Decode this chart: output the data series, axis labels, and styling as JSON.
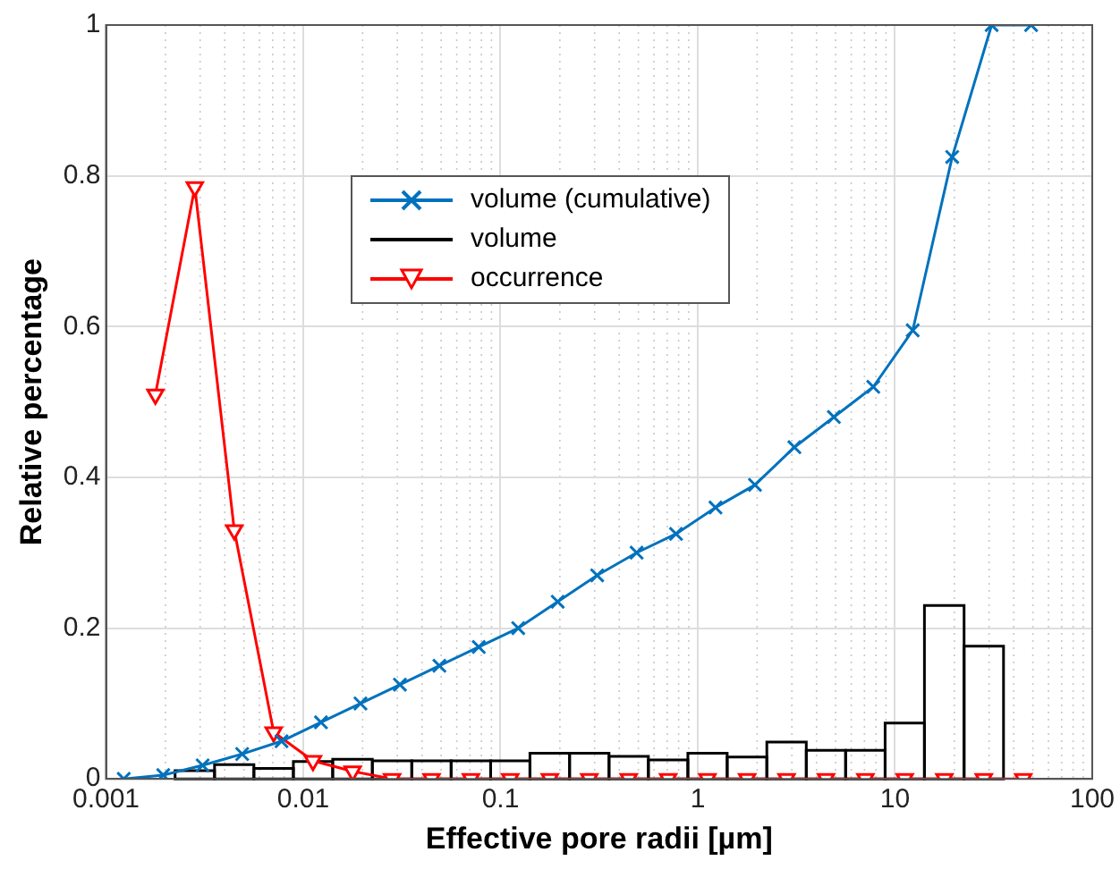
{
  "chart_data": {
    "type": "line",
    "xlabel": "Effective pore radii [µm]",
    "ylabel": "Relative percentage",
    "log": "x",
    "xlim": [
      0.001,
      100
    ],
    "xticks": [
      0.001,
      0.01,
      0.1,
      1,
      10,
      100
    ],
    "ylim": [
      0,
      1
    ],
    "yticks": [
      0,
      0.2,
      0.4,
      0.6,
      0.8,
      1
    ],
    "grid": true,
    "legend": "top left",
    "series": [
      {
        "name": "volume (cumulative)",
        "type": "line",
        "color": "#0072bd",
        "marker": "cross",
        "x": [
          0.00123,
          0.00195,
          0.00309,
          0.0049,
          0.00776,
          0.0123,
          0.0195,
          0.0309,
          0.049,
          0.0776,
          0.123,
          0.195,
          0.309,
          0.49,
          0.776,
          1.23,
          1.95,
          3.09,
          4.9,
          7.76,
          12.3,
          19.5,
          30.9,
          49
        ],
        "values": [
          0,
          0.005,
          0.018,
          0.033,
          0.05,
          0.075,
          0.1,
          0.125,
          0.15,
          0.175,
          0.2,
          0.235,
          0.27,
          0.3,
          0.325,
          0.36,
          0.39,
          0.44,
          0.48,
          0.52,
          0.595,
          0.825,
          1,
          1
        ]
      },
      {
        "name": "volume",
        "type": "histogram",
        "color": "#000000",
        "bins": [
          0.00224,
          0.00355,
          0.00562,
          0.00891,
          0.0141,
          0.0224,
          0.0355,
          0.0562,
          0.0891,
          0.141,
          0.224,
          0.355,
          0.562,
          0.891,
          1.41,
          2.24,
          3.55,
          5.62,
          8.91,
          14.1,
          22.4,
          35.5
        ],
        "values": [
          0.011,
          0.019,
          0.014,
          0.023,
          0.026,
          0.024,
          0.024,
          0.024,
          0.024,
          0.034,
          0.034,
          0.03,
          0.025,
          0.034,
          0.029,
          0.049,
          0.038,
          0.038,
          0.074,
          0.23,
          0.176
        ]
      },
      {
        "name": "occurrence",
        "type": "line",
        "color": "#ff0000",
        "marker": "triangle",
        "x": [
          0.00178,
          0.00282,
          0.00447,
          0.00708,
          0.0112,
          0.0178,
          0.0282,
          0.0447,
          0.0708,
          0.112,
          0.178,
          0.282,
          0.447,
          0.708,
          1.12,
          1.78,
          2.82,
          4.47,
          7.08,
          11.2,
          17.8,
          28.2,
          44.7
        ],
        "values": [
          0.51,
          0.785,
          0.33,
          0.062,
          0.024,
          0.01,
          0,
          0,
          0,
          0,
          0,
          0,
          0,
          0,
          0,
          0,
          0,
          0,
          0,
          0,
          0,
          0,
          0
        ]
      }
    ]
  }
}
